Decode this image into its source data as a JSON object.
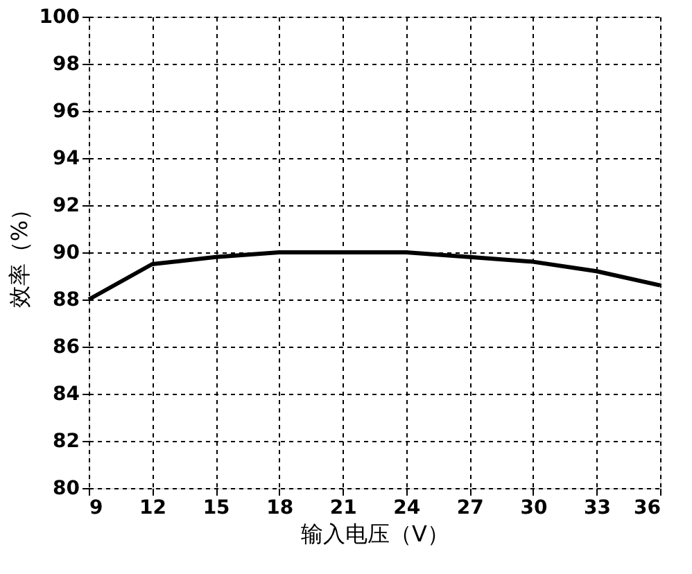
{
  "chart_data": {
    "type": "line",
    "xlabel": "输入电压（V）",
    "ylabel": "效率（%）",
    "x": [
      9,
      12,
      15,
      18,
      21,
      24,
      27,
      30,
      33,
      36
    ],
    "series": [
      {
        "color": "#000000",
        "values": [
          88,
          89.5,
          89.8,
          90,
          90,
          90,
          89.8,
          89.6,
          89.2,
          88.6
        ]
      }
    ],
    "xlim": [
      9,
      36
    ],
    "xticks": [
      9,
      12,
      15,
      18,
      21,
      24,
      27,
      30,
      33,
      36
    ],
    "ylim": [
      80,
      100
    ],
    "yticks": [
      80,
      82,
      84,
      86,
      88,
      90,
      92,
      94,
      96,
      98,
      100
    ],
    "grid": true,
    "marker": "none",
    "line_style": "solid"
  }
}
